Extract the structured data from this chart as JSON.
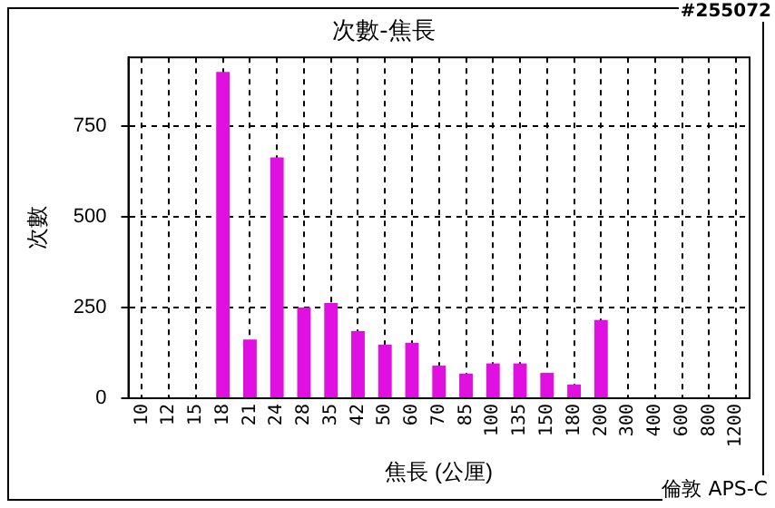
{
  "chart_data": {
    "type": "bar",
    "title": "次數-焦長",
    "xlabel": "焦長 (公厘)",
    "ylabel": "次數",
    "categories": [
      "10",
      "12",
      "15",
      "18",
      "21",
      "24",
      "28",
      "35",
      "42",
      "50",
      "60",
      "70",
      "85",
      "100",
      "135",
      "150",
      "180",
      "200",
      "300",
      "400",
      "600",
      "800",
      "1200"
    ],
    "series": [
      {
        "color": "#e010e0",
        "values": [
          0,
          0,
          0,
          900,
          162,
          664,
          250,
          263,
          185,
          148,
          153,
          90,
          68,
          96,
          96,
          70,
          38,
          216,
          0,
          0,
          0,
          0,
          0
        ]
      }
    ],
    "ylim": [
      0,
      940
    ],
    "yticks": [
      0,
      250,
      500,
      750
    ],
    "grid": true,
    "legend": false,
    "annotations": [
      "#255072",
      "倫敦 APS-C"
    ]
  }
}
